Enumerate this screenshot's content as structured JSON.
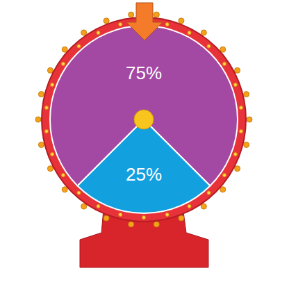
{
  "chart_data": {
    "type": "pie",
    "values": [
      75,
      25
    ],
    "value_labels": [
      "75%",
      "25%"
    ],
    "colors": [
      "#a349a4",
      "#13a0df"
    ],
    "data_labels": true
  }
}
